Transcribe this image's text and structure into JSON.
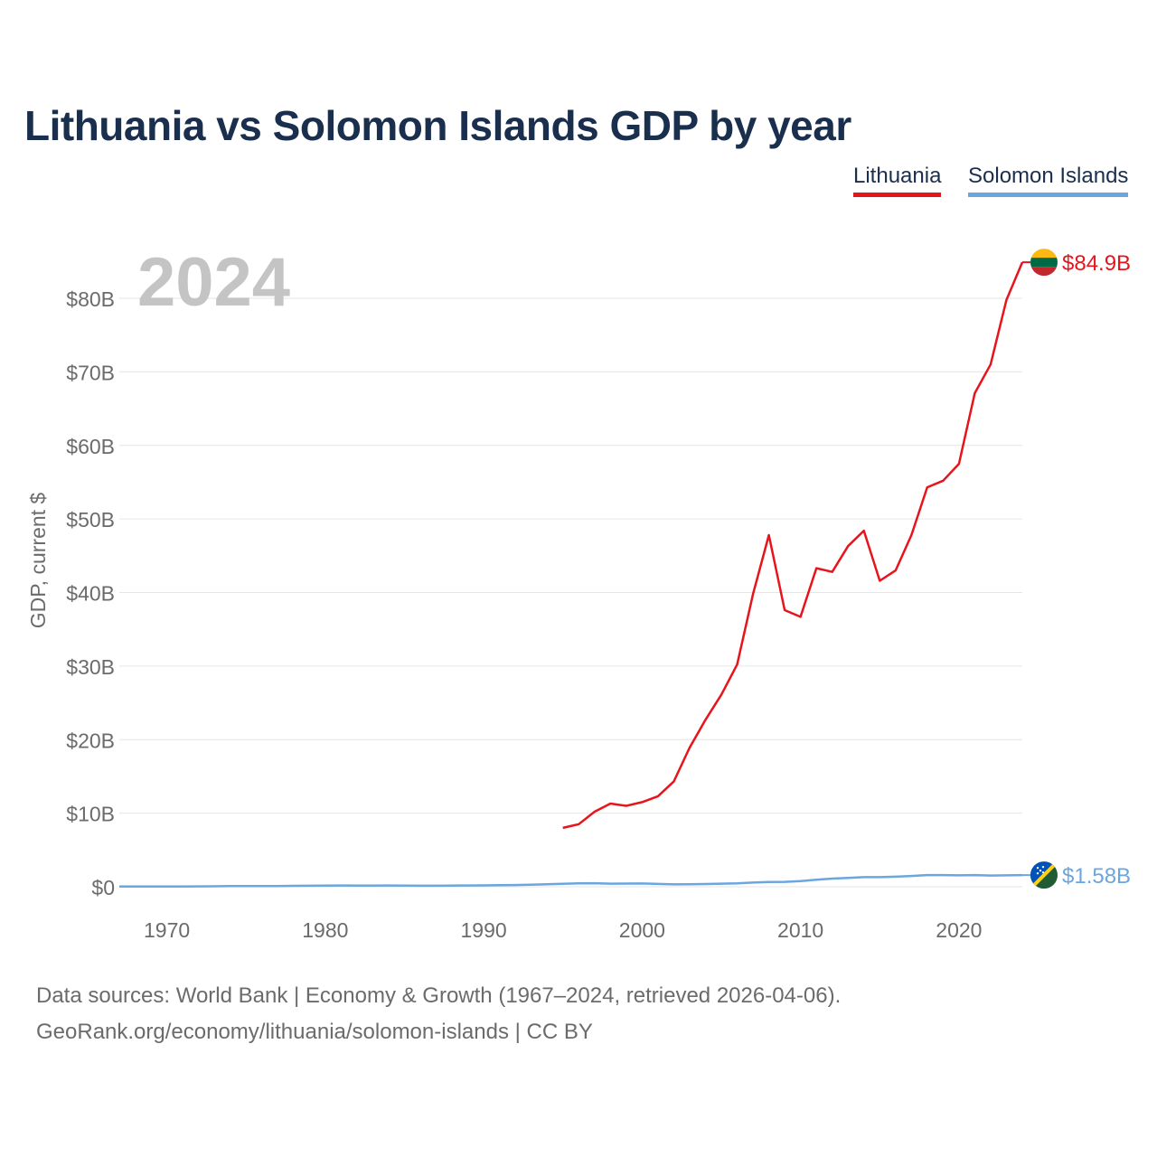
{
  "title": "Lithuania vs Solomon Islands GDP by year",
  "legend": [
    {
      "name": "Lithuania",
      "color": "#e8141c"
    },
    {
      "name": "Solomon Islands",
      "color": "#6aa6e0"
    }
  ],
  "year_label": "2024",
  "footer": {
    "line1": "Data sources: World Bank | Economy & Growth (1967–2024, retrieved 2026-04-06).",
    "line2": "GeoRank.org/economy/lithuania/solomon-islands | CC BY"
  },
  "chart_data": {
    "type": "line",
    "title": "Lithuania vs Solomon Islands GDP by year",
    "ylabel": "GDP, current $",
    "xlabel": "",
    "xlim": [
      1967,
      2024
    ],
    "ylim": [
      0,
      85
    ],
    "y_unit": "billions USD",
    "x_ticks": [
      1970,
      1980,
      1990,
      2000,
      2010,
      2020
    ],
    "y_ticks": [
      {
        "value": 0,
        "label": "$0"
      },
      {
        "value": 10,
        "label": "$10B"
      },
      {
        "value": 20,
        "label": "$20B"
      },
      {
        "value": 30,
        "label": "$30B"
      },
      {
        "value": 40,
        "label": "$40B"
      },
      {
        "value": 50,
        "label": "$50B"
      },
      {
        "value": 60,
        "label": "$60B"
      },
      {
        "value": 70,
        "label": "$70B"
      },
      {
        "value": 80,
        "label": "$80B"
      }
    ],
    "grid": true,
    "legend_position": "top-right",
    "series": [
      {
        "name": "Lithuania",
        "color": "#e8141c",
        "end_label": "$84.9B",
        "flag": "lithuania-flag",
        "x": [
          1995,
          1996,
          1997,
          1998,
          1999,
          2000,
          2001,
          2002,
          2003,
          2004,
          2005,
          2006,
          2007,
          2008,
          2009,
          2010,
          2011,
          2012,
          2013,
          2014,
          2015,
          2016,
          2017,
          2018,
          2019,
          2020,
          2021,
          2022,
          2023,
          2024
        ],
        "values": [
          8.0,
          8.5,
          10.2,
          11.3,
          11.0,
          11.5,
          12.3,
          14.3,
          18.9,
          22.7,
          26.1,
          30.2,
          39.8,
          47.8,
          37.6,
          36.7,
          43.3,
          42.8,
          46.3,
          48.4,
          41.6,
          43.0,
          47.8,
          54.3,
          55.2,
          57.5,
          67.1,
          71.0,
          79.8,
          84.9
        ]
      },
      {
        "name": "Solomon Islands",
        "color": "#6aa6e0",
        "end_label": "$1.58B",
        "flag": "solomon-islands-flag",
        "x": [
          1967,
          1968,
          1969,
          1970,
          1971,
          1972,
          1973,
          1974,
          1975,
          1976,
          1977,
          1978,
          1979,
          1980,
          1981,
          1982,
          1983,
          1984,
          1985,
          1986,
          1987,
          1988,
          1989,
          1990,
          1991,
          1992,
          1993,
          1994,
          1995,
          1996,
          1997,
          1998,
          1999,
          2000,
          2001,
          2002,
          2003,
          2004,
          2005,
          2006,
          2007,
          2008,
          2009,
          2010,
          2011,
          2012,
          2013,
          2014,
          2015,
          2016,
          2017,
          2018,
          2019,
          2020,
          2021,
          2022,
          2023,
          2024
        ],
        "values": [
          0.03,
          0.03,
          0.03,
          0.03,
          0.04,
          0.05,
          0.06,
          0.08,
          0.08,
          0.09,
          0.1,
          0.12,
          0.14,
          0.16,
          0.17,
          0.16,
          0.15,
          0.17,
          0.16,
          0.13,
          0.13,
          0.16,
          0.17,
          0.18,
          0.21,
          0.23,
          0.27,
          0.34,
          0.4,
          0.45,
          0.48,
          0.42,
          0.43,
          0.44,
          0.38,
          0.32,
          0.33,
          0.37,
          0.42,
          0.47,
          0.57,
          0.65,
          0.66,
          0.76,
          0.95,
          1.11,
          1.21,
          1.3,
          1.3,
          1.36,
          1.46,
          1.59,
          1.59,
          1.55,
          1.59,
          1.52,
          1.55,
          1.58
        ]
      }
    ]
  }
}
